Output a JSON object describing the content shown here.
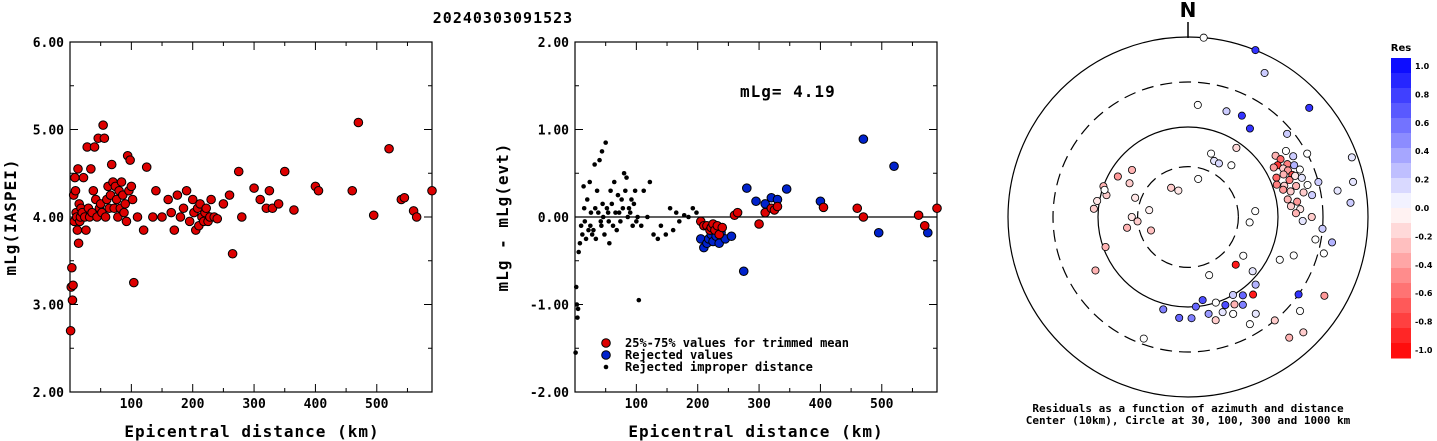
{
  "title": "20240303091523",
  "colors": {
    "accepted": "#dd0000",
    "rejected": "#0022cc",
    "improper": "#000000"
  },
  "chart_data": [
    {
      "type": "scatter",
      "xlabel": "Epicentral distance (km)",
      "ylabel": "mLg(IASPEI)",
      "xlim": [
        0,
        590
      ],
      "ylim": [
        2.0,
        6.0
      ],
      "xticks": [
        "100",
        "200",
        "300",
        "400",
        "500"
      ],
      "yticks": [
        "2.00",
        "3.00",
        "4.00",
        "5.00",
        "6.00"
      ],
      "x": [
        1,
        2,
        3,
        4,
        5,
        6,
        7,
        8,
        9,
        10,
        11,
        12,
        13,
        14,
        15,
        16,
        17,
        18,
        20,
        22,
        24,
        26,
        28,
        30,
        32,
        34,
        36,
        38,
        40,
        42,
        44,
        46,
        48,
        50,
        52,
        54,
        56,
        58,
        60,
        62,
        64,
        66,
        68,
        70,
        72,
        74,
        76,
        78,
        80,
        82,
        84,
        86,
        88,
        90,
        92,
        94,
        96,
        98,
        100,
        102,
        104,
        110,
        120,
        125,
        135,
        140,
        150,
        160,
        165,
        170,
        175,
        180,
        185,
        190,
        195,
        200,
        202,
        205,
        208,
        210,
        212,
        215,
        218,
        220,
        222,
        225,
        228,
        230,
        235,
        240,
        250,
        260,
        265,
        275,
        280,
        300,
        310,
        320,
        325,
        330,
        340,
        350,
        365,
        400,
        405,
        460,
        470,
        495,
        520,
        540,
        545,
        560,
        565,
        590
      ],
      "y": [
        2.7,
        3.2,
        3.42,
        3.05,
        3.22,
        4.25,
        3.95,
        4.45,
        4.3,
        4.05,
        4.0,
        3.85,
        4.55,
        3.7,
        4.15,
        3.95,
        4.0,
        4.1,
        4.05,
        4.45,
        4.0,
        3.85,
        4.8,
        4.1,
        4.0,
        4.55,
        4.05,
        4.3,
        4.8,
        4.2,
        4.0,
        4.9,
        4.1,
        4.15,
        4.05,
        5.05,
        4.9,
        4.0,
        4.2,
        4.35,
        4.1,
        4.25,
        4.6,
        4.4,
        4.1,
        4.35,
        4.2,
        4.0,
        4.3,
        4.1,
        4.4,
        4.25,
        4.05,
        4.15,
        3.95,
        4.7,
        4.3,
        4.65,
        4.35,
        4.2,
        3.25,
        4.0,
        3.85,
        4.57,
        4.0,
        4.3,
        4.0,
        4.2,
        4.05,
        3.85,
        4.25,
        4.0,
        4.1,
        4.3,
        3.95,
        4.2,
        4.05,
        3.85,
        4.1,
        3.9,
        4.15,
        4.0,
        3.95,
        4.05,
        4.1,
        3.95,
        4.0,
        4.2,
        4.0,
        3.98,
        4.15,
        4.25,
        3.58,
        4.52,
        4.0,
        4.33,
        4.2,
        4.1,
        4.3,
        4.1,
        4.15,
        4.52,
        4.08,
        4.35,
        4.3,
        4.3,
        5.08,
        4.02,
        4.78,
        4.2,
        4.22,
        4.07,
        4.0,
        4.3
      ],
      "series_color": "#dd0000"
    },
    {
      "type": "scatter",
      "xlabel": "Epicentral distance (km)",
      "ylabel": "mLg - mLg(evt)",
      "xlim": [
        0,
        590
      ],
      "ylim": [
        -2.0,
        2.0
      ],
      "xticks": [
        "100",
        "200",
        "300",
        "400",
        "500"
      ],
      "yticks": [
        "-2.00",
        "-1.00",
        "0.00",
        "1.00",
        "2.00"
      ],
      "annotation": "mLg= 4.19",
      "reference_line": 0.0,
      "legend": [
        {
          "label": "25%-75% values for trimmed mean",
          "marker": "accepted"
        },
        {
          "label": "Rejected values",
          "marker": "rejected"
        },
        {
          "label": "Rejected improper distance",
          "marker": "improper"
        }
      ],
      "series": [
        {
          "kind": "accepted",
          "x": [
            205,
            210,
            215,
            220,
            222,
            225,
            228,
            232,
            235,
            240,
            260,
            265,
            300,
            310,
            320,
            325,
            330,
            405,
            460,
            470,
            560,
            570,
            590
          ],
          "y": [
            -0.05,
            -0.1,
            -0.1,
            -0.15,
            -0.12,
            -0.08,
            -0.15,
            -0.1,
            -0.2,
            -0.12,
            0.02,
            0.05,
            -0.08,
            0.05,
            0.1,
            0.08,
            0.12,
            0.11,
            0.1,
            0.0,
            0.02,
            -0.1,
            0.1
          ]
        },
        {
          "kind": "rejected",
          "x": [
            205,
            210,
            215,
            218,
            222,
            225,
            230,
            235,
            238,
            245,
            255,
            275,
            280,
            295,
            310,
            320,
            330,
            345,
            400,
            470,
            495,
            520,
            575
          ],
          "y": [
            -0.25,
            -0.35,
            -0.3,
            -0.25,
            -0.2,
            -0.28,
            -0.22,
            -0.3,
            -0.18,
            -0.25,
            -0.22,
            -0.62,
            0.33,
            0.18,
            0.15,
            0.22,
            0.2,
            0.32,
            0.18,
            0.89,
            -0.18,
            0.58,
            -0.18
          ]
        },
        {
          "kind": "improper",
          "x": [
            1,
            2,
            3,
            4,
            5,
            6,
            8,
            10,
            12,
            14,
            15,
            16,
            18,
            20,
            22,
            24,
            25,
            26,
            28,
            30,
            32,
            33,
            34,
            36,
            38,
            40,
            42,
            43,
            44,
            45,
            46,
            48,
            50,
            52,
            54,
            55,
            56,
            58,
            60,
            62,
            64,
            66,
            68,
            70,
            72,
            74,
            76,
            78,
            80,
            82,
            84,
            86,
            88,
            90,
            92,
            94,
            96,
            98,
            100,
            102,
            104,
            108,
            112,
            118,
            122,
            128,
            135,
            140,
            148,
            155,
            160,
            165,
            170,
            178,
            185,
            192,
            198
          ],
          "y": [
            -1.55,
            -0.8,
            -1.0,
            -1.15,
            -1.05,
            -0.4,
            -0.3,
            -0.1,
            -0.2,
            0.35,
            0.1,
            -0.05,
            -0.25,
            0.2,
            -0.15,
            0.4,
            -0.1,
            0.05,
            -0.2,
            -0.15,
            0.6,
            0.1,
            -0.25,
            0.3,
            0.05,
            0.65,
            -0.05,
            -0.1,
            0.75,
            0.15,
            0.0,
            -0.2,
            0.85,
            0.1,
            0.05,
            -0.05,
            -0.3,
            0.3,
            0.15,
            -0.1,
            0.4,
            0.05,
            -0.15,
            0.25,
            0.05,
            -0.05,
            0.2,
            0.1,
            0.5,
            0.3,
            0.45,
            0.0,
            0.1,
            0.05,
            0.2,
            -0.1,
            0.15,
            0.3,
            -0.05,
            0.0,
            -0.95,
            -0.1,
            0.3,
            0.0,
            0.4,
            -0.2,
            -0.25,
            -0.1,
            -0.2,
            0.1,
            -0.15,
            0.05,
            -0.05,
            0.02,
            0.0,
            0.1,
            0.05
          ]
        }
      ]
    },
    {
      "type": "polar_scatter",
      "north_label": "N",
      "rings_km": [
        30,
        100,
        300,
        1000
      ],
      "caption_line1": "Residuals as a function of azimuth and distance",
      "caption_line2": "Center (10km), Circle at 30, 100, 300 and 1000 km",
      "colorbar": {
        "title": "Res",
        "labels": [
          "1.0",
          "0.8",
          "0.6",
          "0.4",
          "0.2",
          "0.0",
          "-0.2",
          "-0.4",
          "-0.6",
          "-0.8",
          "-1.0"
        ],
        "min": -1.0,
        "max": 1.0,
        "positive_color": "#0000ee",
        "negative_color": "#ee0000"
      },
      "points": [
        {
          "az": 330,
          "d": 0.3,
          "r": -0.2
        },
        {
          "az": 340,
          "d": 0.25,
          "r": -0.1
        },
        {
          "az": 300,
          "d": 0.6,
          "r": -0.2
        },
        {
          "az": 310,
          "d": 0.65,
          "r": -0.3
        },
        {
          "az": 280,
          "d": 0.35,
          "r": -0.05
        },
        {
          "az": 290,
          "d": 0.5,
          "r": -0.1
        },
        {
          "az": 285,
          "d": 0.75,
          "r": -0.2
        },
        {
          "az": 290,
          "d": 0.8,
          "r": -0.3
        },
        {
          "az": 280,
          "d": 0.82,
          "r": -0.1
        },
        {
          "az": 275,
          "d": 0.84,
          "r": -0.2
        },
        {
          "az": 288,
          "d": 0.78,
          "r": 0.0
        },
        {
          "az": 300,
          "d": 0.72,
          "r": -0.4
        },
        {
          "az": 250,
          "d": 0.78,
          "r": -0.3
        },
        {
          "az": 240,
          "d": 0.95,
          "r": -0.3
        },
        {
          "az": 270,
          "d": 0.5,
          "r": -0.1
        },
        {
          "az": 265,
          "d": 0.45,
          "r": -0.2
        },
        {
          "az": 250,
          "d": 0.35,
          "r": -0.25
        },
        {
          "az": 260,
          "d": 0.55,
          "r": -0.3
        },
        {
          "az": 20,
          "d": 0.6,
          "r": 0.0
        },
        {
          "az": 25,
          "d": 0.55,
          "r": 0.1
        },
        {
          "az": 15,
          "d": 0.35,
          "r": 0.0
        },
        {
          "az": 30,
          "d": 0.55,
          "r": 0.15
        },
        {
          "az": 40,
          "d": 0.6,
          "r": 0.0
        },
        {
          "az": 35,
          "d": 0.75,
          "r": -0.15
        },
        {
          "az": 5,
          "d": 1.0,
          "r": 0.0
        },
        {
          "az": 20,
          "d": 1.0,
          "r": 0.2
        },
        {
          "az": 28,
          "d": 1.02,
          "r": 0.8
        },
        {
          "az": 35,
          "d": 0.96,
          "r": 0.8
        },
        {
          "az": 55,
          "d": 0.95,
          "r": -0.3
        },
        {
          "az": 58,
          "d": 0.97,
          "r": -0.6
        },
        {
          "az": 60,
          "d": 0.92,
          "r": -0.8
        },
        {
          "az": 62,
          "d": 1.0,
          "r": -0.5
        },
        {
          "az": 63,
          "d": 0.95,
          "r": -0.2
        },
        {
          "az": 65,
          "d": 0.98,
          "r": -0.4
        },
        {
          "az": 66,
          "d": 0.93,
          "r": -0.3
        },
        {
          "az": 68,
          "d": 1.0,
          "r": -0.7
        },
        {
          "az": 70,
          "d": 0.96,
          "r": -0.5
        },
        {
          "az": 72,
          "d": 0.9,
          "r": -0.2
        },
        {
          "az": 74,
          "d": 1.0,
          "r": -0.3
        },
        {
          "az": 56,
          "d": 1.05,
          "r": 0.0
        },
        {
          "az": 60,
          "d": 1.08,
          "r": 0.2
        },
        {
          "az": 64,
          "d": 1.05,
          "r": 0.3
        },
        {
          "az": 67,
          "d": 1.08,
          "r": 0.0
        },
        {
          "az": 69,
          "d": 1.02,
          "r": -0.1
        },
        {
          "az": 71,
          "d": 1.07,
          "r": 0.1
        },
        {
          "az": 75,
          "d": 1.1,
          "r": 0.0
        },
        {
          "az": 78,
          "d": 1.05,
          "r": -0.2
        },
        {
          "az": 80,
          "d": 1.12,
          "r": 0.2
        },
        {
          "az": 60,
          "d": 0.88,
          "r": -0.4
        },
        {
          "az": 66,
          "d": 0.86,
          "r": -0.6
        },
        {
          "az": 70,
          "d": 0.84,
          "r": -0.5
        },
        {
          "az": 74,
          "d": 0.88,
          "r": -0.4
        },
        {
          "az": 76,
          "d": 0.94,
          "r": -0.2
        },
        {
          "az": 80,
          "d": 0.9,
          "r": -0.3
        },
        {
          "az": 82,
          "d": 0.98,
          "r": -0.4
        },
        {
          "az": 84,
          "d": 0.92,
          "r": -0.2
        },
        {
          "az": 86,
          "d": 1.0,
          "r": -0.1
        },
        {
          "az": 88,
          "d": 0.96,
          "r": -0.3
        },
        {
          "az": 90,
          "d": 1.1,
          "r": -0.2
        },
        {
          "az": 92,
          "d": 1.02,
          "r": 0.1
        },
        {
          "az": 95,
          "d": 1.2,
          "r": 0.2
        },
        {
          "az": 100,
          "d": 1.15,
          "r": 0.0
        },
        {
          "az": 75,
          "d": 1.2,
          "r": 0.2
        },
        {
          "az": 62,
          "d": 1.2,
          "r": 0.0
        },
        {
          "az": 50,
          "d": 1.15,
          "r": 0.2
        },
        {
          "az": 100,
          "d": 1.3,
          "r": 0.3
        },
        {
          "az": 105,
          "d": 1.25,
          "r": 0.0
        },
        {
          "az": 80,
          "d": 1.35,
          "r": 0.1
        },
        {
          "az": 110,
          "d": 1.0,
          "r": 0.0
        },
        {
          "az": 115,
          "d": 0.9,
          "r": 0.0
        },
        {
          "az": 95,
          "d": 0.55,
          "r": 0.0
        },
        {
          "az": 85,
          "d": 0.6,
          "r": 0.0
        },
        {
          "az": 125,
          "d": 0.6,
          "r": 0.0
        },
        {
          "az": 130,
          "d": 0.75,
          "r": 0.1
        },
        {
          "az": 135,
          "d": 0.85,
          "r": 0.3
        },
        {
          "az": 140,
          "d": 0.9,
          "r": -0.9
        },
        {
          "az": 145,
          "d": 0.85,
          "r": 0.6
        },
        {
          "az": 148,
          "d": 0.92,
          "r": 0.5
        },
        {
          "az": 150,
          "d": 0.8,
          "r": 0.2
        },
        {
          "az": 152,
          "d": 0.88,
          "r": -0.3
        },
        {
          "az": 155,
          "d": 0.95,
          "r": 0.0
        },
        {
          "az": 157,
          "d": 0.85,
          "r": 0.7
        },
        {
          "az": 160,
          "d": 0.9,
          "r": 0.1
        },
        {
          "az": 162,
          "d": 0.8,
          "r": 0.0
        },
        {
          "az": 165,
          "d": 0.95,
          "r": -0.2
        },
        {
          "az": 168,
          "d": 0.88,
          "r": 0.4
        },
        {
          "az": 170,
          "d": 0.75,
          "r": 0.7
        },
        {
          "az": 175,
          "d": 0.8,
          "r": 0.6
        },
        {
          "az": 178,
          "d": 0.9,
          "r": 0.5
        },
        {
          "az": 135,
          "d": 0.6,
          "r": -0.9
        },
        {
          "az": 160,
          "d": 0.55,
          "r": 0.0
        },
        {
          "az": 145,
          "d": 1.05,
          "r": 0.1
        },
        {
          "az": 150,
          "d": 1.1,
          "r": 0.0
        },
        {
          "az": 140,
          "d": 1.2,
          "r": -0.2
        },
        {
          "az": 130,
          "d": 1.3,
          "r": 0.0
        },
        {
          "az": 120,
          "d": 1.4,
          "r": -0.4
        },
        {
          "az": 125,
          "d": 1.2,
          "r": 0.8
        },
        {
          "az": 140,
          "d": 1.4,
          "r": -0.3
        },
        {
          "az": 135,
          "d": 1.45,
          "r": -0.2
        },
        {
          "az": 185,
          "d": 0.9,
          "r": 0.6
        },
        {
          "az": 195,
          "d": 0.85,
          "r": 0.5
        },
        {
          "az": 200,
          "d": 1.15,
          "r": 0.0
        },
        {
          "az": 5,
          "d": 1.6,
          "r": 0.0
        },
        {
          "az": 22,
          "d": 1.6,
          "r": 0.8
        },
        {
          "az": 28,
          "d": 1.45,
          "r": 0.2
        },
        {
          "az": 48,
          "d": 1.45,
          "r": 0.8
        },
        {
          "az": 70,
          "d": 1.55,
          "r": 0.1
        },
        {
          "az": 78,
          "d": 1.5,
          "r": 0.1
        },
        {
          "az": 85,
          "d": 1.45,
          "r": 0.2
        }
      ]
    }
  ]
}
